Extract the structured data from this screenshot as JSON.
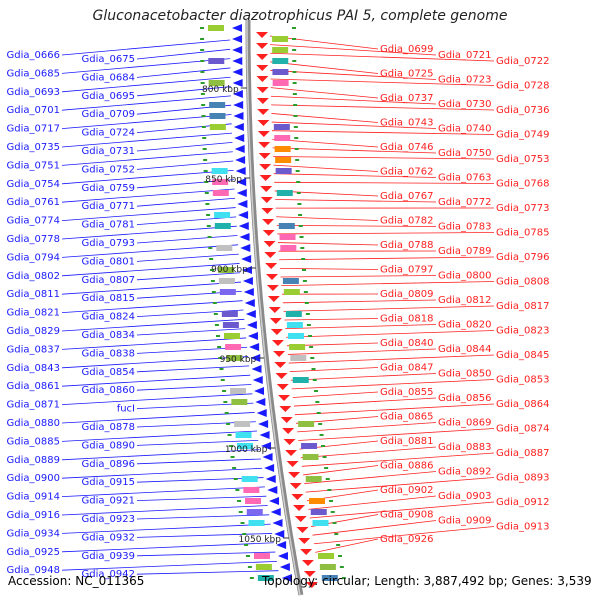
{
  "title": "Gluconacetobacter diazotrophicus PAI 5, complete genome",
  "footer": {
    "accession": "Accession: NC_011365",
    "summary": "Topology: circular; Length: 3,887,492 bp; Genes: 3,539"
  },
  "colors": {
    "left_strand": "#1a1aff",
    "right_strand": "#ff2020",
    "backbone": "#8a8a8a",
    "tick_label": "#222222",
    "gene_tick": "#2a9d2a"
  },
  "ticks": [
    "800 kbp",
    "850 kbp",
    "900 kbp",
    "950 kbp",
    "1000 kbp",
    "1050 kbp"
  ],
  "left_labels": [
    "Gdia_0666",
    "Gdia_0675",
    "Gdia_0685",
    "Gdia_0684",
    "Gdia_0693",
    "Gdia_0695",
    "Gdia_0701",
    "Gdia_0709",
    "Gdia_0717",
    "Gdia_0724",
    "Gdia_0735",
    "Gdia_0731",
    "Gdia_0751",
    "Gdia_0752",
    "Gdia_0754",
    "Gdia_0759",
    "Gdia_0761",
    "Gdia_0771",
    "Gdia_0774",
    "Gdia_0781",
    "Gdia_0778",
    "Gdia_0793",
    "Gdia_0794",
    "Gdia_0801",
    "Gdia_0802",
    "Gdia_0807",
    "Gdia_0811",
    "Gdia_0815",
    "Gdia_0821",
    "Gdia_0824",
    "Gdia_0829",
    "Gdia_0834",
    "Gdia_0837",
    "Gdia_0838",
    "Gdia_0843",
    "Gdia_0854",
    "Gdia_0861",
    "Gdia_0860",
    "Gdia_0871",
    "fucI",
    "Gdia_0880",
    "Gdia_0878",
    "Gdia_0885",
    "Gdia_0890",
    "Gdia_0889",
    "Gdia_0896",
    "Gdia_0900",
    "Gdia_0915",
    "Gdia_0914",
    "Gdia_0921",
    "Gdia_0916",
    "Gdia_0923",
    "Gdia_0934",
    "Gdia_0932",
    "Gdia_0925",
    "Gdia_0939",
    "Gdia_0948",
    "Gdia_0942"
  ],
  "right_labels": [
    "Gdia_0699",
    "Gdia_0721",
    "Gdia_0722",
    "Gdia_0725",
    "Gdia_0723",
    "Gdia_0728",
    "Gdia_0737",
    "Gdia_0730",
    "Gdia_0736",
    "Gdia_0743",
    "Gdia_0740",
    "Gdia_0749",
    "Gdia_0746",
    "Gdia_0750",
    "Gdia_0753",
    "Gdia_0762",
    "Gdia_0763",
    "Gdia_0768",
    "Gdia_0767",
    "Gdia_0772",
    "Gdia_0773",
    "Gdia_0782",
    "Gdia_0783",
    "Gdia_0785",
    "Gdia_0788",
    "Gdia_0789",
    "Gdia_0796",
    "Gdia_0797",
    "Gdia_0800",
    "Gdia_0808",
    "Gdia_0809",
    "Gdia_0812",
    "Gdia_0817",
    "Gdia_0818",
    "Gdia_0820",
    "Gdia_0823",
    "Gdia_0840",
    "Gdia_0844",
    "Gdia_0845",
    "Gdia_0847",
    "Gdia_0850",
    "Gdia_0853",
    "Gdia_0855",
    "Gdia_0856",
    "Gdia_0864",
    "Gdia_0865",
    "Gdia_0869",
    "Gdia_0874",
    "Gdia_0881",
    "Gdia_0883",
    "Gdia_0887",
    "Gdia_0886",
    "Gdia_0892",
    "Gdia_0893",
    "Gdia_0902",
    "Gdia_0903",
    "Gdia_0912",
    "Gdia_0908",
    "Gdia_0909",
    "Gdia_0913",
    "Gdia_0926"
  ]
}
